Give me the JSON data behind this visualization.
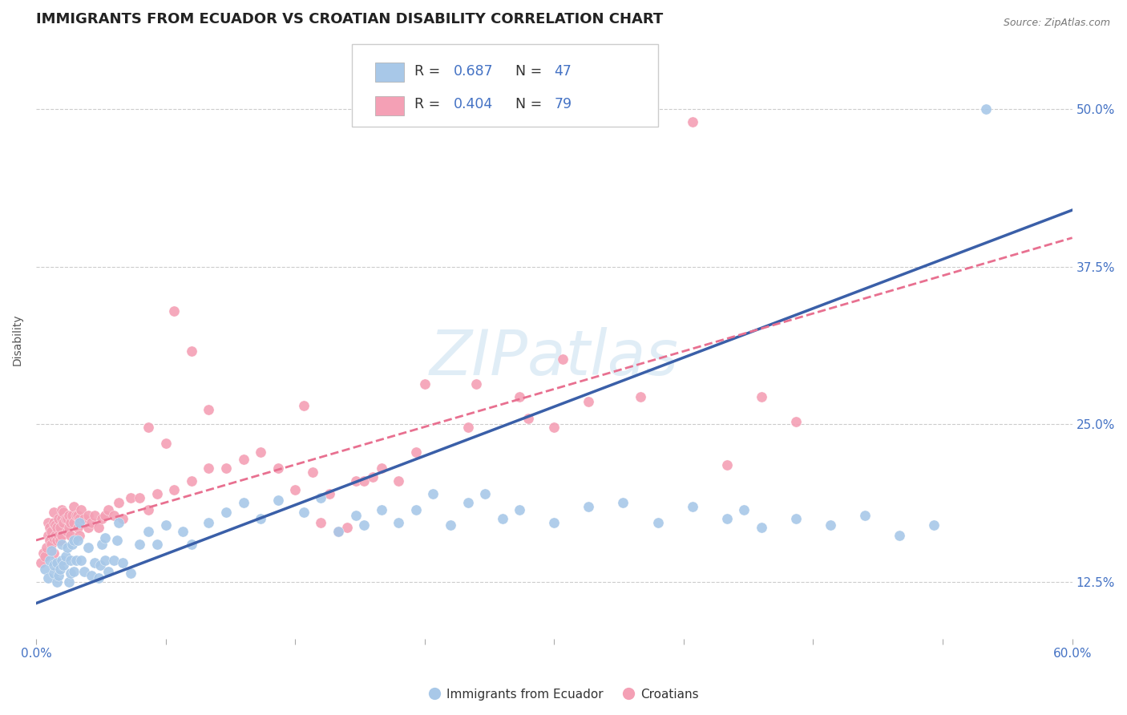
{
  "title": "IMMIGRANTS FROM ECUADOR VS CROATIAN DISABILITY CORRELATION CHART",
  "source_text": "Source: ZipAtlas.com",
  "ylabel": "Disability",
  "xlim": [
    0.0,
    0.6
  ],
  "ylim": [
    0.08,
    0.555
  ],
  "xticks_all": [
    0.0,
    0.075,
    0.15,
    0.225,
    0.3,
    0.375,
    0.45,
    0.525,
    0.6
  ],
  "xtick_labels_ends": {
    "0.0": "0.0%",
    "0.6": "60.0%"
  },
  "yticks_right": [
    0.125,
    0.25,
    0.375,
    0.5
  ],
  "ytick_labels_right": [
    "12.5%",
    "25.0%",
    "37.5%",
    "50.0%"
  ],
  "blue_color": "#A8C8E8",
  "pink_color": "#F4A0B5",
  "blue_line_color": "#3A5FA8",
  "pink_line_color": "#E87090",
  "legend_label1": "Immigrants from Ecuador",
  "legend_label2": "Croatians",
  "watermark": "ZIPatlas",
  "title_fontsize": 13,
  "label_fontsize": 10,
  "tick_fontsize": 11,
  "axis_color": "#4472C4",
  "blue_scatter": [
    [
      0.005,
      0.135
    ],
    [
      0.007,
      0.128
    ],
    [
      0.008,
      0.142
    ],
    [
      0.009,
      0.15
    ],
    [
      0.01,
      0.132
    ],
    [
      0.01,
      0.138
    ],
    [
      0.012,
      0.125
    ],
    [
      0.012,
      0.14
    ],
    [
      0.013,
      0.13
    ],
    [
      0.014,
      0.135
    ],
    [
      0.015,
      0.142
    ],
    [
      0.015,
      0.155
    ],
    [
      0.016,
      0.138
    ],
    [
      0.017,
      0.145
    ],
    [
      0.018,
      0.152
    ],
    [
      0.019,
      0.125
    ],
    [
      0.02,
      0.132
    ],
    [
      0.02,
      0.142
    ],
    [
      0.021,
      0.155
    ],
    [
      0.022,
      0.158
    ],
    [
      0.022,
      0.133
    ],
    [
      0.023,
      0.142
    ],
    [
      0.024,
      0.158
    ],
    [
      0.025,
      0.172
    ],
    [
      0.026,
      0.142
    ],
    [
      0.028,
      0.133
    ],
    [
      0.03,
      0.152
    ],
    [
      0.032,
      0.13
    ],
    [
      0.034,
      0.14
    ],
    [
      0.036,
      0.128
    ],
    [
      0.037,
      0.138
    ],
    [
      0.038,
      0.155
    ],
    [
      0.04,
      0.16
    ],
    [
      0.04,
      0.142
    ],
    [
      0.042,
      0.133
    ],
    [
      0.045,
      0.142
    ],
    [
      0.047,
      0.158
    ],
    [
      0.048,
      0.172
    ],
    [
      0.05,
      0.14
    ],
    [
      0.055,
      0.132
    ],
    [
      0.06,
      0.155
    ],
    [
      0.065,
      0.165
    ],
    [
      0.07,
      0.155
    ],
    [
      0.075,
      0.17
    ],
    [
      0.085,
      0.165
    ],
    [
      0.09,
      0.155
    ],
    [
      0.1,
      0.172
    ],
    [
      0.11,
      0.18
    ],
    [
      0.12,
      0.188
    ],
    [
      0.13,
      0.175
    ],
    [
      0.14,
      0.19
    ],
    [
      0.155,
      0.18
    ],
    [
      0.165,
      0.192
    ],
    [
      0.175,
      0.165
    ],
    [
      0.185,
      0.178
    ],
    [
      0.19,
      0.17
    ],
    [
      0.2,
      0.182
    ],
    [
      0.21,
      0.172
    ],
    [
      0.22,
      0.182
    ],
    [
      0.23,
      0.195
    ],
    [
      0.24,
      0.17
    ],
    [
      0.25,
      0.188
    ],
    [
      0.26,
      0.195
    ],
    [
      0.27,
      0.175
    ],
    [
      0.28,
      0.182
    ],
    [
      0.3,
      0.172
    ],
    [
      0.32,
      0.185
    ],
    [
      0.34,
      0.188
    ],
    [
      0.36,
      0.172
    ],
    [
      0.38,
      0.185
    ],
    [
      0.4,
      0.175
    ],
    [
      0.41,
      0.182
    ],
    [
      0.42,
      0.168
    ],
    [
      0.44,
      0.175
    ],
    [
      0.46,
      0.17
    ],
    [
      0.48,
      0.178
    ],
    [
      0.5,
      0.162
    ],
    [
      0.52,
      0.17
    ],
    [
      0.55,
      0.5
    ]
  ],
  "pink_scatter": [
    [
      0.003,
      0.14
    ],
    [
      0.004,
      0.148
    ],
    [
      0.005,
      0.145
    ],
    [
      0.006,
      0.152
    ],
    [
      0.007,
      0.162
    ],
    [
      0.007,
      0.172
    ],
    [
      0.008,
      0.158
    ],
    [
      0.008,
      0.168
    ],
    [
      0.009,
      0.155
    ],
    [
      0.009,
      0.165
    ],
    [
      0.01,
      0.148
    ],
    [
      0.01,
      0.16
    ],
    [
      0.01,
      0.172
    ],
    [
      0.01,
      0.18
    ],
    [
      0.011,
      0.162
    ],
    [
      0.011,
      0.17
    ],
    [
      0.012,
      0.158
    ],
    [
      0.012,
      0.168
    ],
    [
      0.013,
      0.162
    ],
    [
      0.013,
      0.175
    ],
    [
      0.014,
      0.158
    ],
    [
      0.014,
      0.168
    ],
    [
      0.015,
      0.162
    ],
    [
      0.015,
      0.175
    ],
    [
      0.015,
      0.182
    ],
    [
      0.016,
      0.172
    ],
    [
      0.016,
      0.18
    ],
    [
      0.017,
      0.175
    ],
    [
      0.018,
      0.165
    ],
    [
      0.018,
      0.175
    ],
    [
      0.019,
      0.168
    ],
    [
      0.019,
      0.178
    ],
    [
      0.02,
      0.162
    ],
    [
      0.02,
      0.172
    ],
    [
      0.021,
      0.178
    ],
    [
      0.022,
      0.185
    ],
    [
      0.022,
      0.172
    ],
    [
      0.023,
      0.178
    ],
    [
      0.024,
      0.168
    ],
    [
      0.024,
      0.178
    ],
    [
      0.025,
      0.162
    ],
    [
      0.025,
      0.175
    ],
    [
      0.026,
      0.182
    ],
    [
      0.028,
      0.175
    ],
    [
      0.03,
      0.168
    ],
    [
      0.03,
      0.178
    ],
    [
      0.032,
      0.172
    ],
    [
      0.034,
      0.178
    ],
    [
      0.036,
      0.168
    ],
    [
      0.038,
      0.175
    ],
    [
      0.04,
      0.178
    ],
    [
      0.042,
      0.182
    ],
    [
      0.045,
      0.178
    ],
    [
      0.048,
      0.188
    ],
    [
      0.05,
      0.175
    ],
    [
      0.055,
      0.192
    ],
    [
      0.06,
      0.192
    ],
    [
      0.065,
      0.182
    ],
    [
      0.07,
      0.195
    ],
    [
      0.08,
      0.198
    ],
    [
      0.09,
      0.205
    ],
    [
      0.1,
      0.215
    ],
    [
      0.065,
      0.248
    ],
    [
      0.075,
      0.235
    ],
    [
      0.08,
      0.34
    ],
    [
      0.09,
      0.308
    ],
    [
      0.1,
      0.262
    ],
    [
      0.11,
      0.215
    ],
    [
      0.12,
      0.222
    ],
    [
      0.13,
      0.228
    ],
    [
      0.14,
      0.215
    ],
    [
      0.15,
      0.198
    ],
    [
      0.155,
      0.265
    ],
    [
      0.16,
      0.212
    ],
    [
      0.165,
      0.172
    ],
    [
      0.17,
      0.195
    ],
    [
      0.175,
      0.165
    ],
    [
      0.18,
      0.168
    ],
    [
      0.185,
      0.205
    ],
    [
      0.19,
      0.205
    ],
    [
      0.195,
      0.208
    ],
    [
      0.2,
      0.215
    ],
    [
      0.21,
      0.205
    ],
    [
      0.22,
      0.228
    ],
    [
      0.225,
      0.282
    ],
    [
      0.25,
      0.248
    ],
    [
      0.255,
      0.282
    ],
    [
      0.28,
      0.272
    ],
    [
      0.285,
      0.255
    ],
    [
      0.3,
      0.248
    ],
    [
      0.305,
      0.302
    ],
    [
      0.32,
      0.268
    ],
    [
      0.35,
      0.272
    ],
    [
      0.38,
      0.49
    ],
    [
      0.4,
      0.218
    ],
    [
      0.42,
      0.272
    ],
    [
      0.44,
      0.252
    ]
  ],
  "blue_trend": {
    "slope": 0.52,
    "intercept": 0.108
  },
  "pink_trend": {
    "slope": 0.4,
    "intercept": 0.158
  }
}
